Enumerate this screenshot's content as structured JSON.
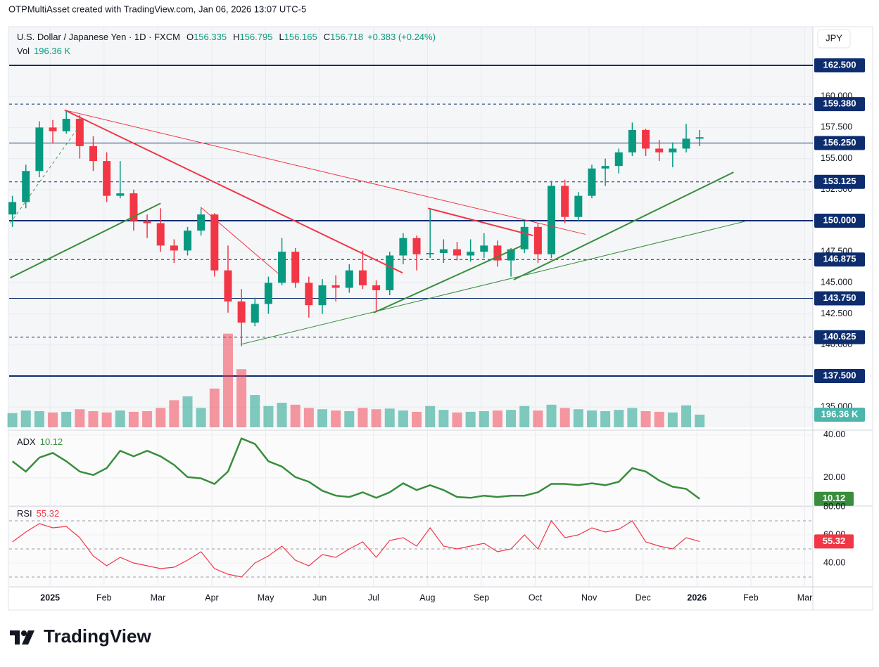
{
  "watermark": "OTPMultiAsset created with TradingView.com, Jan 06, 2026 13:07 UTC-5",
  "footer": "TradingView",
  "chart_data": {
    "type": "candlestick",
    "title": "U.S. Dollar / Japanese Yen · 1D · FXCM",
    "currency": "JPY",
    "ohlc": [
      {
        "key": "O",
        "value": 156.335
      },
      {
        "key": "H",
        "value": 156.795
      },
      {
        "key": "L",
        "value": 156.165
      },
      {
        "key": "C",
        "value": 156.718
      }
    ],
    "change": "+0.383 (+0.24%)",
    "up_color": "#089981",
    "down_color": "#f23645",
    "x": [
      -0.7,
      -0.45,
      -0.2,
      0.05,
      0.3,
      0.55,
      0.8,
      1.05,
      1.3,
      1.55,
      1.8,
      2.05,
      2.3,
      2.55,
      2.8,
      3.05,
      3.3,
      3.55,
      3.8,
      4.05,
      4.3,
      4.55,
      4.8,
      5.05,
      5.3,
      5.55,
      5.8,
      6.05,
      6.3,
      6.55,
      6.8,
      7.05,
      7.3,
      7.55,
      7.8,
      8.05,
      8.3,
      8.55,
      8.8,
      9.05,
      9.3,
      9.55,
      9.8,
      10.05,
      10.3,
      10.55,
      10.8,
      11.05,
      11.3,
      11.55,
      11.8,
      12.05
    ],
    "open": [
      150.5,
      151.5,
      154,
      157.5,
      157.2,
      158.2,
      156,
      154.8,
      152,
      152.2,
      150,
      149.8,
      148,
      147.6,
      149.2,
      150.5,
      146,
      143.5,
      141.8,
      143.3,
      145,
      147.5,
      145,
      143.2,
      144.8,
      144.6,
      146,
      144.8,
      144.4,
      147.2,
      148.6,
      147.3,
      147.4,
      147.7,
      147.2,
      147.5,
      148,
      146.8,
      147.7,
      149.5,
      147.3,
      152.8,
      150.3,
      152,
      154.2,
      154.4,
      155.5,
      157.3,
      155.8,
      155.5,
      155.8,
      156.6
    ],
    "high": [
      152,
      154.5,
      158,
      158.1,
      158.9,
      158.5,
      156.8,
      155.5,
      154.8,
      152.5,
      150.5,
      151,
      148.5,
      149.5,
      151,
      150.6,
      148,
      144.5,
      143.8,
      145.5,
      148.6,
      147.8,
      145.5,
      145.3,
      145.6,
      146.5,
      147.6,
      145.2,
      147.5,
      149,
      148.8,
      150.9,
      148.5,
      148.3,
      148.5,
      149,
      148.4,
      147.8,
      150,
      149.8,
      153.2,
      153.3,
      152.3,
      154.5,
      155,
      155.8,
      157.9,
      157.4,
      156.5,
      156.3,
      157.8,
      157.3
    ],
    "low": [
      149.5,
      151,
      153.5,
      156.2,
      157,
      155,
      154,
      151.5,
      151.8,
      149.2,
      148.6,
      147.5,
      146.6,
      147.2,
      148.8,
      145.5,
      142.6,
      139.9,
      141.5,
      142.5,
      144.8,
      144.6,
      142.2,
      142.5,
      143.5,
      144.2,
      144.5,
      142.7,
      144,
      146.5,
      146,
      147,
      146.6,
      146.8,
      146.7,
      147,
      146.3,
      145.5,
      147.4,
      146.6,
      147,
      149.8,
      150,
      151.8,
      152.8,
      153.8,
      155.2,
      155.2,
      154.8,
      154.3,
      155.5,
      156
    ],
    "close": [
      151.5,
      154,
      157.5,
      157.2,
      158.2,
      156,
      154.8,
      152,
      152.2,
      150,
      149.8,
      148,
      147.6,
      149.2,
      150.5,
      146,
      143.5,
      141.8,
      143.3,
      145,
      147.5,
      145,
      143.2,
      144.8,
      144.6,
      146,
      144.8,
      144.4,
      147.2,
      148.6,
      147.3,
      147.4,
      147.7,
      147.2,
      147.5,
      148,
      146.8,
      147.7,
      149.5,
      147.3,
      152.8,
      150.3,
      152,
      154.2,
      154.4,
      155.5,
      157.3,
      155.8,
      155.5,
      155.8,
      156.6,
      156.718
    ],
    "xlim": [
      -0.76,
      14.15
    ],
    "xticks": [
      {
        "value": 0,
        "label": "2025"
      },
      {
        "value": 1,
        "label": "Feb"
      },
      {
        "value": 2,
        "label": "Mar"
      },
      {
        "value": 3,
        "label": "Apr"
      },
      {
        "value": 4,
        "label": "May"
      },
      {
        "value": 5,
        "label": "Jun"
      },
      {
        "value": 6,
        "label": "Jul"
      },
      {
        "value": 7,
        "label": "Aug"
      },
      {
        "value": 8,
        "label": "Sep"
      },
      {
        "value": 9,
        "label": "Oct"
      },
      {
        "value": 10,
        "label": "Nov"
      },
      {
        "value": 11,
        "label": "Dec"
      },
      {
        "value": 12,
        "label": "2026"
      },
      {
        "value": 13,
        "label": "Feb"
      },
      {
        "value": 14,
        "label": "Mar"
      }
    ],
    "ylim": [
      133.37,
      165.61
    ],
    "yticks": [
      {
        "value": 135,
        "label": "135.000"
      },
      {
        "value": 137.5,
        "label": "137.500"
      },
      {
        "value": 140,
        "label": "140.000"
      },
      {
        "value": 142.5,
        "label": "142.500"
      },
      {
        "value": 145,
        "label": "145.000"
      },
      {
        "value": 147.5,
        "label": "147.500"
      },
      {
        "value": 150,
        "label": "150.000"
      },
      {
        "value": 152.5,
        "label": "152.500"
      },
      {
        "value": 155,
        "label": "155.000"
      },
      {
        "value": 157.5,
        "label": "157.500"
      },
      {
        "value": 160,
        "label": "160.000"
      }
    ],
    "grid": true,
    "level_color": "#0d2d6e",
    "levels": [
      {
        "value": 162.5,
        "label": "162.500",
        "style": "solid"
      },
      {
        "value": 159.38,
        "label": "159.380",
        "style": "dashed"
      },
      {
        "value": 156.25,
        "label": "156.250",
        "style": "solid"
      },
      {
        "value": 153.125,
        "label": "153.125",
        "style": "dashed"
      },
      {
        "value": 150,
        "label": "150.000",
        "style": "solid"
      },
      {
        "value": 146.875,
        "label": "146.875",
        "style": "dashed"
      },
      {
        "value": 143.75,
        "label": "143.750",
        "style": "solid"
      },
      {
        "value": 140.625,
        "label": "140.625",
        "style": "dashed"
      },
      {
        "value": 137.5,
        "label": "137.500",
        "style": "solid"
      }
    ],
    "trendlines": [
      {
        "color": "#f23645",
        "width": 1,
        "x": [
          0.27,
          9.93
        ],
        "y": [
          158.9,
          148.9
        ]
      },
      {
        "color": "#f23645",
        "width": 2,
        "x": [
          0.27,
          6.54
        ],
        "y": [
          158.9,
          145.8
        ]
      },
      {
        "color": "#f23645",
        "width": 1,
        "x": [
          2.79,
          4.3
        ],
        "y": [
          151.1,
          145.5
        ]
      },
      {
        "color": "#f23645",
        "width": 2,
        "x": [
          7.01,
          8.96
        ],
        "y": [
          151.0,
          148.8
        ]
      },
      {
        "color": "#388e3c",
        "width": 2,
        "x": [
          -0.74,
          2.05
        ],
        "y": [
          145.4,
          151.4
        ]
      },
      {
        "color": "#43a047",
        "width": 1,
        "dashed": true,
        "x": [
          -0.74,
          0.54
        ],
        "y": [
          149.8,
          157.6
        ]
      },
      {
        "color": "#388e3c",
        "width": 1,
        "x": [
          3.54,
          12.89
        ],
        "y": [
          140.05,
          149.94
        ]
      },
      {
        "color": "#388e3c",
        "width": 2,
        "x": [
          6.0,
          8.8
        ],
        "y": [
          142.59,
          148.08
        ]
      },
      {
        "color": "#388e3c",
        "width": 2,
        "x": [
          8.6,
          12.68
        ],
        "y": [
          145.25,
          153.9
        ]
      }
    ],
    "volume": {
      "name": "Vol",
      "vlim": [
        0,
        6200
      ],
      "up_color": "rgba(8,153,129,0.5)",
      "down_color": "rgba(242,54,69,0.5)",
      "badge_color": "#4db6ac",
      "values": [
        220,
        260,
        250,
        230,
        240,
        280,
        250,
        230,
        260,
        240,
        250,
        300,
        420,
        480,
        300,
        600,
        1450,
        900,
        500,
        330,
        380,
        350,
        300,
        280,
        260,
        250,
        300,
        280,
        290,
        260,
        240,
        330,
        270,
        230,
        240,
        250,
        260,
        270,
        330,
        260,
        350,
        300,
        280,
        260,
        250,
        270,
        300,
        250,
        240,
        230,
        340,
        196.36
      ],
      "value_labels": [
        null,
        null,
        null,
        null,
        null,
        null,
        null,
        null,
        null,
        null,
        null,
        null,
        null,
        null,
        null,
        null,
        null,
        null,
        null,
        null,
        null,
        null,
        null,
        null,
        null,
        null,
        null,
        null,
        null,
        null,
        null,
        null,
        null,
        null,
        null,
        null,
        null,
        null,
        null,
        null,
        null,
        null,
        null,
        null,
        null,
        null,
        null,
        null,
        null,
        null,
        null,
        "196.36 K"
      ]
    },
    "indicators": [
      {
        "name": "ADX",
        "color": "#388e3c",
        "ylim": [
          7.4,
          40.3
        ],
        "yticks": [
          {
            "value": 20,
            "label": "20.00"
          },
          {
            "value": 40,
            "label": "40.00"
          }
        ],
        "values": [
          27.7,
          22.9,
          29.4,
          31.6,
          27.7,
          22.9,
          21.3,
          24.5,
          32.6,
          30,
          32.6,
          30,
          26,
          20.3,
          19.7,
          17.1,
          22.9,
          38.4,
          35.8,
          27.7,
          25.2,
          20.3,
          18.1,
          13.9,
          11.6,
          11,
          13.2,
          10.6,
          13.2,
          17.4,
          14.2,
          16.5,
          14.2,
          11,
          10.6,
          11.6,
          11,
          11.6,
          11.6,
          13.2,
          17.1,
          17.1,
          16.5,
          17.4,
          16.5,
          18.1,
          24.5,
          22.9,
          18.7,
          15.8,
          14.8,
          10.12
        ]
      },
      {
        "name": "RSI",
        "color": "#f23645",
        "ylim": [
          23,
          80.5
        ],
        "yticks": [
          {
            "value": 40,
            "label": "40.00"
          },
          {
            "value": 60,
            "label": "60.00"
          },
          {
            "value": 80,
            "label": "80.00"
          }
        ],
        "levels": [
          70,
          50,
          30
        ],
        "values": [
          55,
          62,
          68,
          65,
          66,
          58,
          45,
          38,
          44,
          40,
          38,
          36,
          37,
          42,
          48,
          36,
          32,
          30,
          40,
          45,
          52,
          42,
          38,
          46,
          44,
          50,
          55,
          44,
          56,
          58,
          52,
          65,
          52,
          50,
          52,
          54,
          48,
          50,
          60,
          50,
          70,
          58,
          60,
          65,
          62,
          64,
          70,
          55,
          52,
          50,
          58,
          55.32
        ]
      }
    ]
  }
}
